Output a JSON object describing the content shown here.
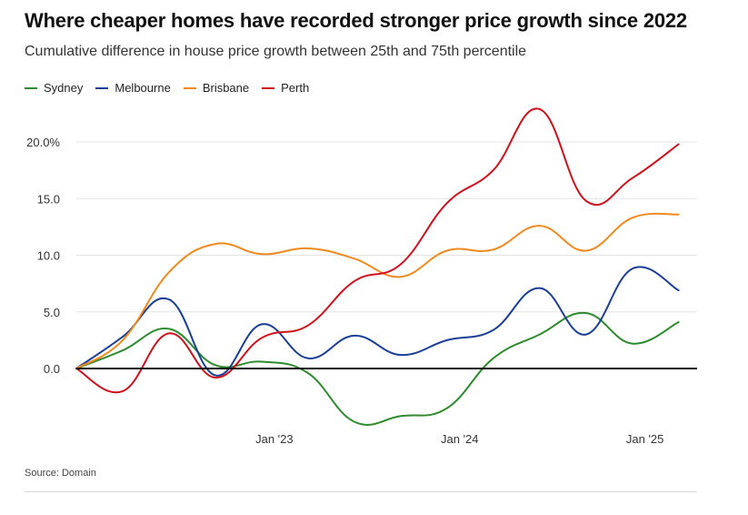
{
  "header": {
    "title": "Where cheaper homes have recorded stronger price growth since 2022",
    "subtitle": "Cumulative difference in house price growth between 25th and 75th percentile"
  },
  "footer": {
    "source": "Source: Domain"
  },
  "chart_data": {
    "type": "line",
    "title": "Where cheaper homes have recorded stronger price growth since 2022",
    "subtitle": "Cumulative difference in house price growth between 25th and 75th percentile",
    "xlabel": "",
    "ylabel": "",
    "x": [
      "2022-Q1",
      "2022-Q2",
      "2022-Q3",
      "2022-Q4",
      "2023-Q1",
      "2023-Q2",
      "2023-Q3",
      "2023-Q4",
      "2024-Q1",
      "2024-Q2",
      "2024-Q3",
      "2024-Q4",
      "2025-Q1",
      "2025-Q2",
      "2025-Q3"
    ],
    "x_ticks": [
      "Jan '23",
      "Jan '24",
      "Jan '25"
    ],
    "x_tick_positions": [
      "2023-Q1",
      "2024-Q1",
      "2025-Q1"
    ],
    "ylim": [
      -5,
      22
    ],
    "y_ticks": [
      0,
      5,
      10,
      15,
      20
    ],
    "y_tick_labels": [
      "0.0",
      "5.0",
      "10.0",
      "15.0",
      "20.0%"
    ],
    "grid": true,
    "legend": "top-left",
    "series": [
      {
        "name": "Sydney",
        "color": "#2e8b2e",
        "values": [
          0,
          1.6,
          3.5,
          0.3,
          0.6,
          -0.4,
          -4.7,
          -4.2,
          -3.5,
          0.9,
          3.0,
          4.9,
          2.2,
          4.1,
          null
        ]
      },
      {
        "name": "Melbourne",
        "color": "#1a3f96",
        "values": [
          0,
          2.8,
          6.1,
          -0.6,
          3.9,
          0.9,
          2.9,
          1.2,
          2.5,
          3.4,
          7.1,
          3.0,
          8.8,
          6.9,
          null
        ]
      },
      {
        "name": "Brisbane",
        "color": "#f08a1e",
        "values": [
          0,
          2.5,
          8.5,
          11.0,
          10.1,
          10.6,
          9.7,
          8.1,
          10.4,
          10.5,
          12.6,
          10.4,
          13.3,
          13.6,
          null
        ]
      },
      {
        "name": "Perth",
        "color": "#d0111b",
        "values": [
          0,
          -2.0,
          3.1,
          -0.8,
          2.7,
          3.8,
          7.7,
          9.2,
          14.6,
          17.5,
          22.9,
          14.8,
          16.8,
          19.8,
          null
        ]
      }
    ]
  }
}
